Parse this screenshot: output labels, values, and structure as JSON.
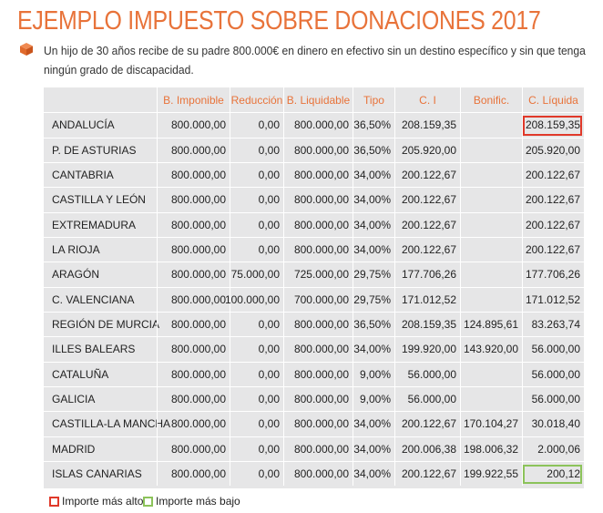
{
  "title": "EJEMPLO IMPUESTO SOBRE DONACIONES 2017",
  "intro": "Un hijo de 30 años recibe de su padre 800.000€ en dinero en efectivo sin un destino específico y sin que tenga ningún grado de discapacidad.",
  "colors": {
    "accent": "#e8733a",
    "table_bg": "#e6e6e7",
    "highest": "#e0392a",
    "lowest": "#8cc35a"
  },
  "table": {
    "headers": [
      "",
      "B. Imponible",
      "Reducción",
      "B. Liquidable",
      "Tipo",
      "C. I",
      "Bonific.",
      "C. Líquida"
    ],
    "rows": [
      [
        "ANDALUCÍA",
        "800.000,00",
        "0,00",
        "800.000,00",
        "36,50%",
        "208.159,35",
        "",
        "208.159,35"
      ],
      [
        "P. DE ASTURIAS",
        "800.000,00",
        "0,00",
        "800.000,00",
        "36,50%",
        "205.920,00",
        "",
        "205.920,00"
      ],
      [
        "CANTABRIA",
        "800.000,00",
        "0,00",
        "800.000,00",
        "34,00%",
        "200.122,67",
        "",
        "200.122,67"
      ],
      [
        "CASTILLA Y LEÓN",
        "800.000,00",
        "0,00",
        "800.000,00",
        "34,00%",
        "200.122,67",
        "",
        "200.122,67"
      ],
      [
        "EXTREMADURA",
        "800.000,00",
        "0,00",
        "800.000,00",
        "34,00%",
        "200.122,67",
        "",
        "200.122,67"
      ],
      [
        "LA RIOJA",
        "800.000,00",
        "0,00",
        "800.000,00",
        "34,00%",
        "200.122,67",
        "",
        "200.122,67"
      ],
      [
        "ARAGÓN",
        "800.000,00",
        "75.000,00",
        "725.000,00",
        "29,75%",
        "177.706,26",
        "",
        "177.706,26"
      ],
      [
        "C. VALENCIANA",
        "800.000,00",
        "100.000,00",
        "700.000,00",
        "29,75%",
        "171.012,52",
        "",
        "171.012,52"
      ],
      [
        "REGIÓN DE MURCIA",
        "800.000,00",
        "0,00",
        "800.000,00",
        "36,50%",
        "208.159,35",
        "124.895,61",
        "83.263,74"
      ],
      [
        "ILLES BALEARS",
        "800.000,00",
        "0,00",
        "800.000,00",
        "34,00%",
        "199.920,00",
        "143.920,00",
        "56.000,00"
      ],
      [
        "CATALUÑA",
        "800.000,00",
        "0,00",
        "800.000,00",
        "9,00%",
        "56.000,00",
        "",
        "56.000,00"
      ],
      [
        "GALICIA",
        "800.000,00",
        "0,00",
        "800.000,00",
        "9,00%",
        "56.000,00",
        "",
        "56.000,00"
      ],
      [
        "CASTILLA-LA MANCHA",
        "800.000,00",
        "0,00",
        "800.000,00",
        "34,00%",
        "200.122,67",
        "170.104,27",
        "30.018,40"
      ],
      [
        "MADRID",
        "800.000,00",
        "0,00",
        "800.000,00",
        "34,00%",
        "200.006,38",
        "198.006,32",
        "2.000,06"
      ],
      [
        "ISLAS CANARIAS",
        "800.000,00",
        "0,00",
        "800.000,00",
        "34,00%",
        "200.122,67",
        "199.922,55",
        "200,12"
      ]
    ]
  },
  "legend": {
    "highest": "Importe más alto",
    "lowest": "Importe más bajo"
  }
}
